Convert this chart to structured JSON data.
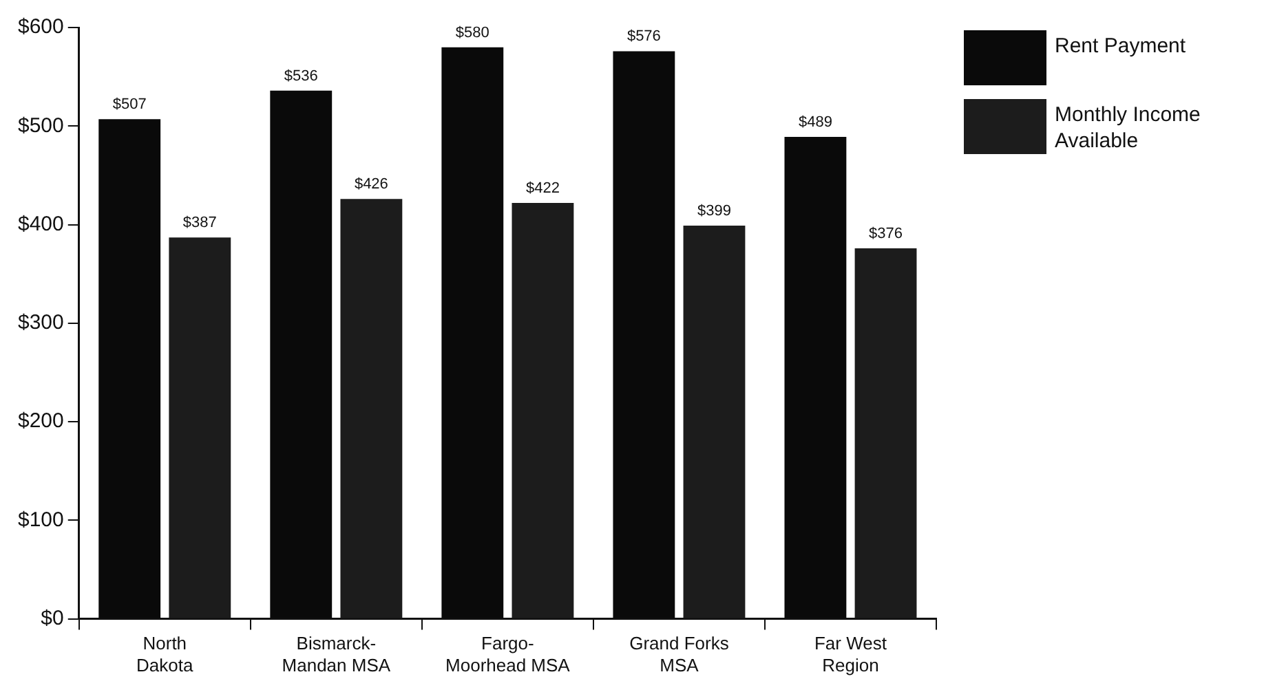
{
  "chart_data": {
    "type": "bar",
    "categories": [
      "North\nDakota",
      "Bismarck-\nMandan MSA",
      "Fargo-\nMoorhead MSA",
      "Grand Forks\nMSA",
      "Far West\nRegion"
    ],
    "series": [
      {
        "name": "Rent Payment",
        "color": "#0a0a0a",
        "values": [
          507,
          536,
          580,
          576,
          489
        ],
        "value_labels": [
          "$507",
          "$536",
          "$580",
          "$576",
          "$489"
        ]
      },
      {
        "name": "Monthly Income\nAvailable",
        "color": "#1c1c1c",
        "values": [
          387,
          426,
          422,
          399,
          376
        ],
        "value_labels": [
          "$387",
          "$426",
          "$422",
          "$399",
          "$376"
        ]
      }
    ],
    "ylim": [
      0,
      600
    ],
    "yticks": [
      {
        "value": 0,
        "label": "$0"
      },
      {
        "value": 100,
        "label": "$100"
      },
      {
        "value": 200,
        "label": "$200"
      },
      {
        "value": 300,
        "label": "$300"
      },
      {
        "value": 400,
        "label": "$400"
      },
      {
        "value": 500,
        "label": "$500"
      },
      {
        "value": 600,
        "label": "$600"
      }
    ],
    "grid": false,
    "legend": "top right"
  }
}
